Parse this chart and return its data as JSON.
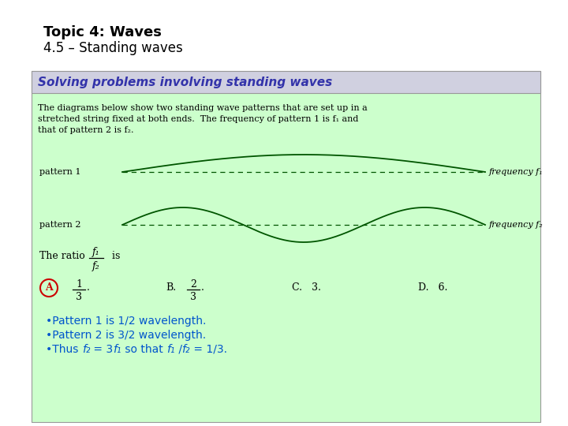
{
  "title_line1": "Topic 4: Waves",
  "title_line2": "4.5 – Standing waves",
  "bg_color": "#ffffff",
  "box_bg": "#ccffcc",
  "box_header_bg": "#d0d0e0",
  "header_text": "Solving problems involving standing waves",
  "header_color": "#3333aa",
  "body_color": "#000000",
  "wave_color": "#005500",
  "pattern1_label": "pattern 1",
  "pattern2_label": "pattern 2",
  "freq1_label": "frequency f₁",
  "freq2_label": "frequency f₂",
  "ratio_label": "The ratio",
  "ratio_color": "#000000",
  "answer_circle_color": "#cc0000",
  "bullet_color": "#0055cc",
  "bullet1": "•Pattern 1 is 1/2 wavelength.",
  "bullet2": "•Pattern 2 is 3/2 wavelength."
}
